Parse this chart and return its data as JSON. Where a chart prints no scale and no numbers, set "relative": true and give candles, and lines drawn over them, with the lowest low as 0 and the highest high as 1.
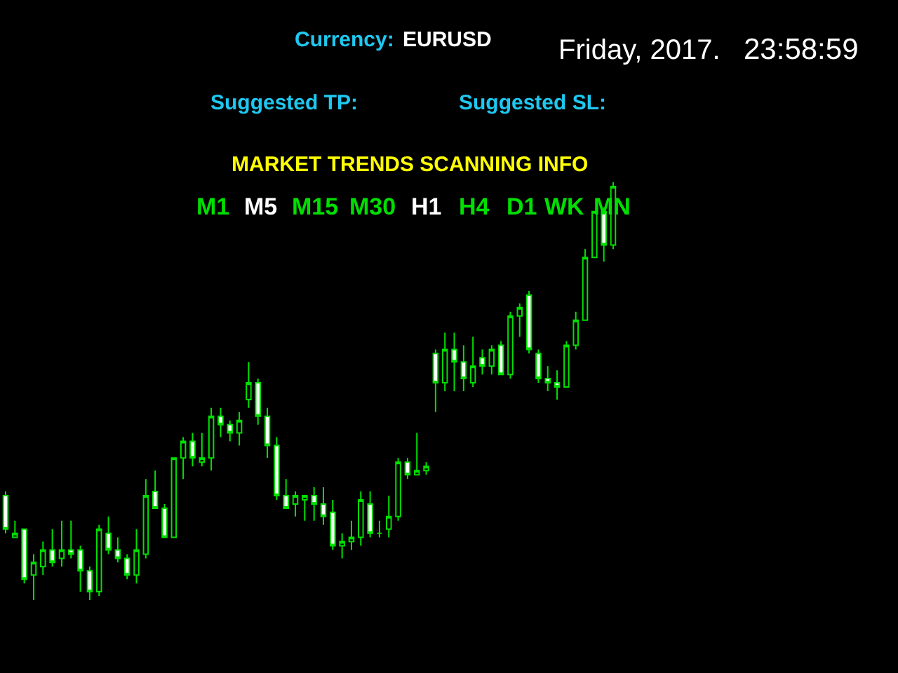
{
  "chart_data": {
    "type": "candlestick",
    "relative": true,
    "categories": [
      null,
      null,
      null,
      null,
      null,
      null,
      null,
      null,
      null,
      null,
      null,
      null,
      null,
      null,
      null,
      null,
      null,
      null,
      null,
      null,
      null,
      null,
      null,
      null,
      null,
      null,
      null,
      null,
      null,
      null,
      null,
      null,
      null,
      null,
      null,
      null,
      null,
      null,
      null,
      null,
      null,
      null,
      null,
      null,
      null,
      null,
      null,
      null,
      null,
      null,
      null,
      null,
      null,
      null,
      null,
      null,
      null,
      null,
      null,
      null,
      null,
      null,
      null,
      null,
      null,
      null
    ],
    "ohlc": [
      [
        0.25,
        0.26,
        0.16,
        0.17
      ],
      [
        0.15,
        0.19,
        0.15,
        0.16
      ],
      [
        0.17,
        0.17,
        0.04,
        0.05
      ],
      [
        0.06,
        0.11,
        0.0,
        0.09
      ],
      [
        0.08,
        0.14,
        0.06,
        0.12
      ],
      [
        0.12,
        0.17,
        0.08,
        0.09
      ],
      [
        0.1,
        0.19,
        0.08,
        0.12
      ],
      [
        0.12,
        0.19,
        0.1,
        0.11
      ],
      [
        0.12,
        0.13,
        0.02,
        0.07
      ],
      [
        0.07,
        0.08,
        0.0,
        0.02
      ],
      [
        0.02,
        0.18,
        0.01,
        0.17
      ],
      [
        0.16,
        0.2,
        0.11,
        0.12
      ],
      [
        0.12,
        0.15,
        0.09,
        0.1
      ],
      [
        0.1,
        0.11,
        0.05,
        0.06
      ],
      [
        0.06,
        0.17,
        0.04,
        0.12
      ],
      [
        0.11,
        0.29,
        0.1,
        0.25
      ],
      [
        0.26,
        0.31,
        0.22,
        0.22
      ],
      [
        0.22,
        0.23,
        0.15,
        0.15
      ],
      [
        0.15,
        0.34,
        0.15,
        0.34
      ],
      [
        0.34,
        0.39,
        0.29,
        0.38
      ],
      [
        0.38,
        0.4,
        0.32,
        0.34
      ],
      [
        0.33,
        0.4,
        0.32,
        0.34
      ],
      [
        0.34,
        0.46,
        0.31,
        0.44
      ],
      [
        0.44,
        0.46,
        0.39,
        0.42
      ],
      [
        0.42,
        0.43,
        0.38,
        0.4
      ],
      [
        0.4,
        0.45,
        0.37,
        0.43
      ],
      [
        0.48,
        0.57,
        0.46,
        0.52
      ],
      [
        0.52,
        0.53,
        0.42,
        0.44
      ],
      [
        0.44,
        0.46,
        0.34,
        0.37
      ],
      [
        0.37,
        0.39,
        0.24,
        0.25
      ],
      [
        0.25,
        0.29,
        0.22,
        0.22
      ],
      [
        0.23,
        0.26,
        0.2,
        0.25
      ],
      [
        0.24,
        0.25,
        0.19,
        0.25
      ],
      [
        0.25,
        0.27,
        0.19,
        0.23
      ],
      [
        0.23,
        0.27,
        0.18,
        0.2
      ],
      [
        0.21,
        0.24,
        0.12,
        0.13
      ],
      [
        0.13,
        0.16,
        0.1,
        0.14
      ],
      [
        0.14,
        0.19,
        0.12,
        0.15
      ],
      [
        0.15,
        0.26,
        0.13,
        0.24
      ],
      [
        0.23,
        0.26,
        0.15,
        0.16
      ],
      [
        0.16,
        0.19,
        0.15,
        0.16
      ],
      [
        0.17,
        0.25,
        0.15,
        0.2
      ],
      [
        0.2,
        0.34,
        0.19,
        0.33
      ],
      [
        0.33,
        0.34,
        0.29,
        0.3
      ],
      [
        0.3,
        0.4,
        0.3,
        0.31
      ],
      [
        0.31,
        0.33,
        0.3,
        0.32
      ],
      [
        0.59,
        0.6,
        0.45,
        0.52
      ],
      [
        0.52,
        0.64,
        0.5,
        0.6
      ],
      [
        0.6,
        0.64,
        0.5,
        0.57
      ],
      [
        0.57,
        0.61,
        0.5,
        0.53
      ],
      [
        0.52,
        0.63,
        0.51,
        0.56
      ],
      [
        0.58,
        0.6,
        0.54,
        0.56
      ],
      [
        0.56,
        0.61,
        0.54,
        0.6
      ],
      [
        0.61,
        0.62,
        0.54,
        0.54
      ],
      [
        0.54,
        0.69,
        0.53,
        0.68
      ],
      [
        0.68,
        0.71,
        0.63,
        0.7
      ],
      [
        0.73,
        0.74,
        0.59,
        0.6
      ],
      [
        0.59,
        0.6,
        0.52,
        0.53
      ],
      [
        0.53,
        0.56,
        0.5,
        0.52
      ],
      [
        0.52,
        0.55,
        0.48,
        0.51
      ],
      [
        0.51,
        0.62,
        0.51,
        0.61
      ],
      [
        0.61,
        0.69,
        0.6,
        0.67
      ],
      [
        0.67,
        0.84,
        0.67,
        0.82
      ],
      [
        0.82,
        0.93,
        0.82,
        0.93
      ],
      [
        0.93,
        0.94,
        0.81,
        0.85
      ],
      [
        0.85,
        1.0,
        0.84,
        0.99
      ]
    ],
    "annotations": [
      "Currency:",
      "EURUSD",
      "Friday, 2017.",
      "23:58:59",
      "Suggested TP:",
      "Suggested SL:",
      "MARKET TRENDS SCANNING INFO",
      "M1",
      "M5",
      "M15",
      "M30",
      "H1",
      "H4",
      "D1",
      "WK",
      "MN"
    ],
    "legend": false
  }
}
